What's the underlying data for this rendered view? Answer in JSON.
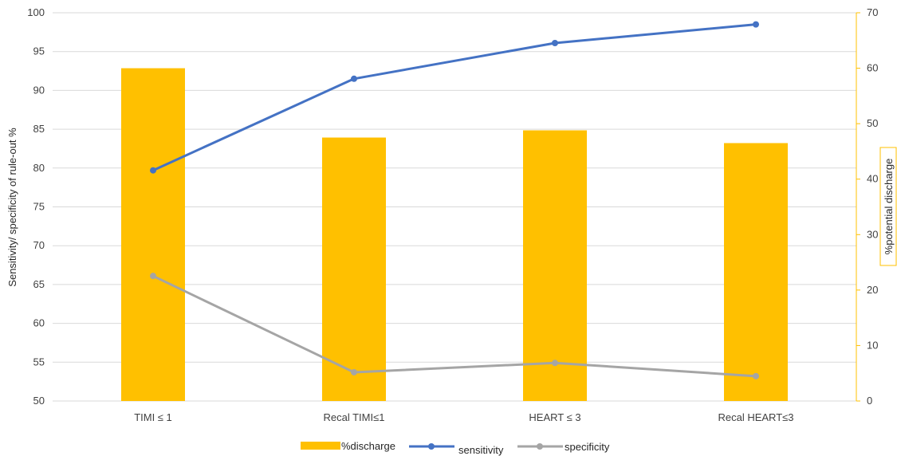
{
  "chart_data": {
    "type": "bar",
    "categories": [
      "TIMI ≤ 1",
      "Recal TIMI≤1",
      "HEART ≤ 3",
      "Recal HEART≤3"
    ],
    "bar_series": {
      "name": "%discharge",
      "axis": "right",
      "values": [
        60.0,
        47.5,
        48.8,
        46.5
      ]
    },
    "line_series": [
      {
        "name": "sensitivity",
        "axis": "left",
        "values": [
          79.7,
          91.5,
          96.1,
          98.5
        ]
      },
      {
        "name": "specificity",
        "axis": "left",
        "values": [
          66.1,
          53.7,
          54.9,
          53.2
        ]
      }
    ],
    "ylabel_left": "Sensitivity/ specificity of rule-out %",
    "ylabel_right": "%potential discharge",
    "ylim_left": [
      50,
      100
    ],
    "ylim_right": [
      0,
      70
    ],
    "left_ticks": [
      "50",
      "55",
      "60",
      "65",
      "70",
      "75",
      "80",
      "85",
      "90",
      "95",
      "100"
    ],
    "right_ticks": [
      "0",
      "10",
      "20",
      "30",
      "40",
      "50",
      "60",
      "70"
    ],
    "grid": true,
    "legend_position": "bottom",
    "legend": [
      "%discharge",
      "sensitivity",
      "specificity"
    ],
    "colors": {
      "bar": "#FFC000",
      "sensitivity": "#4472C4",
      "specificity": "#A5A5A5",
      "grid": "#D9D9D9",
      "right_axis": "#FFC000"
    }
  }
}
